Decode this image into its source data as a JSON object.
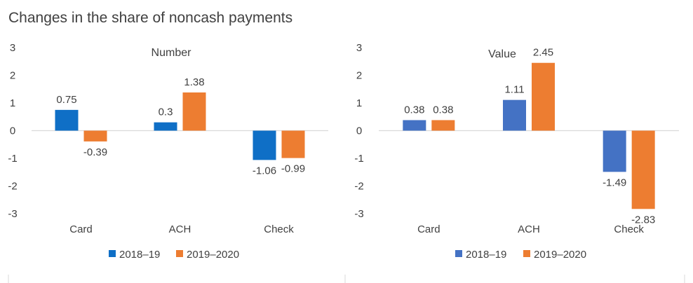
{
  "title": "Changes in the share of noncash payments",
  "colors": {
    "left_2018": "#0f6fc6",
    "right_2018": "#4472c4",
    "y2019": "#ed7d31",
    "axis": "#d9d9d9"
  },
  "chart_data": [
    {
      "type": "bar",
      "title": "Number",
      "categories": [
        "Card",
        "ACH",
        "Check"
      ],
      "series": [
        {
          "name": "2018–19",
          "values": [
            0.75,
            0.3,
            -1.06
          ]
        },
        {
          "name": "2019–2020",
          "values": [
            -0.39,
            1.38,
            -0.99
          ]
        }
      ],
      "data_labels": [
        [
          "0.75",
          "0.3",
          "-1.06"
        ],
        [
          "-0.39",
          "1.38",
          "-0.99"
        ]
      ],
      "ylim": [
        -3,
        3
      ],
      "yticks": [
        3,
        2,
        1,
        0,
        -1,
        -2,
        -3
      ],
      "ytick_labels": [
        "3",
        "2",
        "1",
        "0",
        "-1",
        "-2",
        "-3"
      ],
      "legend": "bottom",
      "grid": false
    },
    {
      "type": "bar",
      "title": "Value",
      "categories": [
        "Card",
        "ACH",
        "Check"
      ],
      "series": [
        {
          "name": "2018–19",
          "values": [
            0.38,
            1.11,
            -1.49
          ]
        },
        {
          "name": "2019–2020",
          "values": [
            0.38,
            2.45,
            -2.83
          ]
        }
      ],
      "data_labels": [
        [
          "0.38",
          "1.11",
          "-1.49"
        ],
        [
          "0.38",
          "2.45",
          "-2.83"
        ]
      ],
      "ylim": [
        -3,
        3
      ],
      "yticks": [
        3,
        2,
        1,
        0,
        -1,
        -2,
        -3
      ],
      "ytick_labels": [
        "3",
        "2",
        "1",
        "0",
        "-1",
        "-2",
        "-3"
      ],
      "legend": "bottom",
      "grid": false
    }
  ]
}
